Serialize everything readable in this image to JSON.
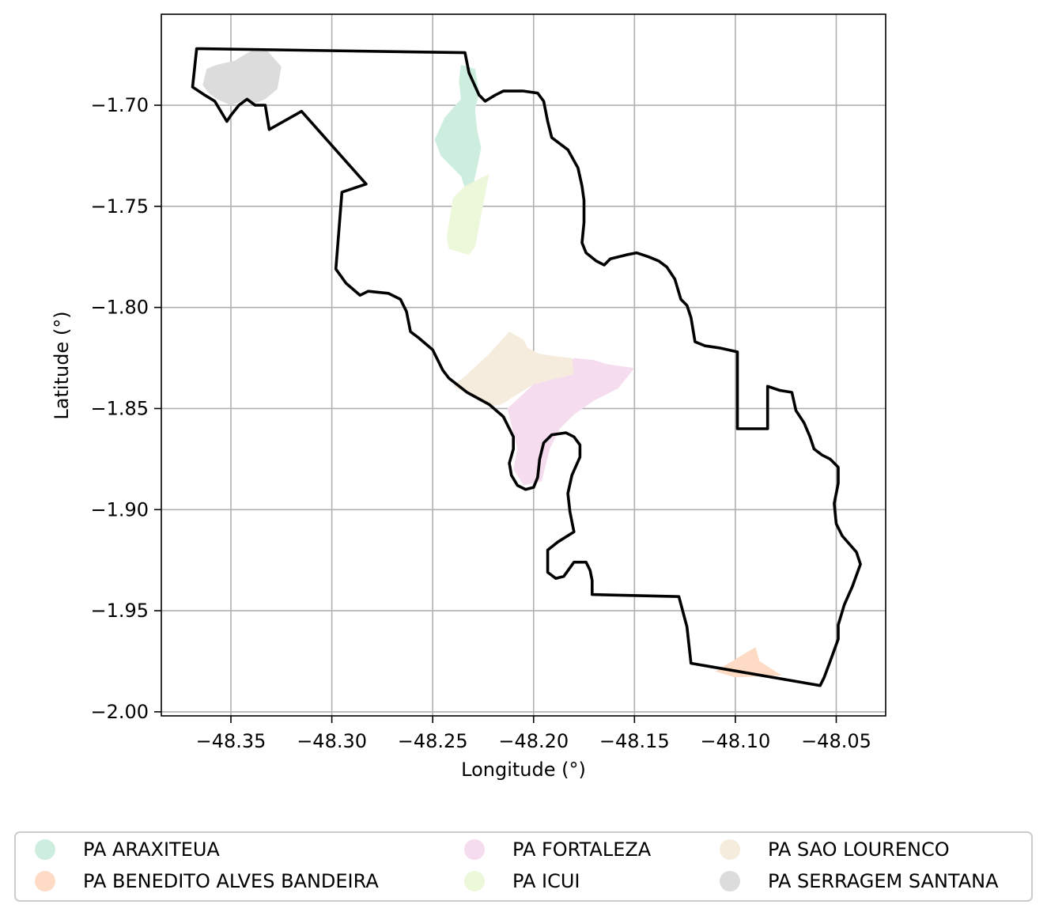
{
  "map": {
    "x_label": "Longitude (°)",
    "y_label": "Latitude (°)",
    "x_ticks": [
      {
        "value": -48.35,
        "label": "−48.35"
      },
      {
        "value": -48.3,
        "label": "−48.30"
      },
      {
        "value": -48.25,
        "label": "−48.25"
      },
      {
        "value": -48.2,
        "label": "−48.20"
      },
      {
        "value": -48.15,
        "label": "−48.15"
      },
      {
        "value": -48.1,
        "label": "−48.10"
      },
      {
        "value": -48.05,
        "label": "−48.05"
      }
    ],
    "y_ticks": [
      {
        "value": -1.7,
        "label": "−1.70"
      },
      {
        "value": -1.75,
        "label": "−1.75"
      },
      {
        "value": -1.8,
        "label": "−1.80"
      },
      {
        "value": -1.85,
        "label": "−1.85"
      },
      {
        "value": -1.9,
        "label": "−1.90"
      },
      {
        "value": -1.95,
        "label": "−1.95"
      },
      {
        "value": -2.0,
        "label": "−2.00"
      }
    ],
    "x_range": [
      -48.3845,
      -48.0255
    ],
    "y_range": [
      -2.002,
      -1.655
    ],
    "grid": true,
    "legend_placement": "below",
    "boundary_color": "#000000"
  },
  "legend": [
    {
      "label": "PA ARAXITEUA",
      "color": "#cdeede"
    },
    {
      "label": "PA BENEDITO ALVES BANDEIRA",
      "color": "#fddbc4"
    },
    {
      "label": "PA FORTALEZA",
      "color": "#f5dcee"
    },
    {
      "label": "PA ICUI",
      "color": "#edf8db"
    },
    {
      "label": "PA SAO LOURENCO",
      "color": "#f5ecdd"
    },
    {
      "label": "PA SERRAGEM SANTANA",
      "color": "#dcdcdc"
    }
  ],
  "chart_data": {
    "type": "map",
    "x_label": "Longitude (°)",
    "y_label": "Latitude (°)",
    "x_range": [
      -48.3845,
      -48.0255
    ],
    "y_range": [
      -2.002,
      -1.655
    ],
    "grid": true,
    "legend_placement": "below",
    "boundary": [
      [
        -48.367,
        -1.672
      ],
      [
        -48.234,
        -1.674
      ],
      [
        -48.232,
        -1.684
      ],
      [
        -48.227,
        -1.695
      ],
      [
        -48.224,
        -1.698
      ],
      [
        -48.219,
        -1.695
      ],
      [
        -48.215,
        -1.693
      ],
      [
        -48.205,
        -1.693
      ],
      [
        -48.198,
        -1.694
      ],
      [
        -48.195,
        -1.698
      ],
      [
        -48.193,
        -1.708
      ],
      [
        -48.191,
        -1.716
      ],
      [
        -48.183,
        -1.722
      ],
      [
        -48.178,
        -1.731
      ],
      [
        -48.176,
        -1.74
      ],
      [
        -48.175,
        -1.747
      ],
      [
        -48.175,
        -1.758
      ],
      [
        -48.176,
        -1.768
      ],
      [
        -48.174,
        -1.773
      ],
      [
        -48.169,
        -1.777
      ],
      [
        -48.165,
        -1.779
      ],
      [
        -48.162,
        -1.776
      ],
      [
        -48.154,
        -1.774
      ],
      [
        -48.149,
        -1.773
      ],
      [
        -48.143,
        -1.775
      ],
      [
        -48.138,
        -1.777
      ],
      [
        -48.134,
        -1.78
      ],
      [
        -48.13,
        -1.786
      ],
      [
        -48.127,
        -1.796
      ],
      [
        -48.124,
        -1.799
      ],
      [
        -48.122,
        -1.805
      ],
      [
        -48.12,
        -1.817
      ],
      [
        -48.115,
        -1.819
      ],
      [
        -48.108,
        -1.82
      ],
      [
        -48.099,
        -1.822
      ],
      [
        -48.099,
        -1.86
      ],
      [
        -48.084,
        -1.86
      ],
      [
        -48.084,
        -1.839
      ],
      [
        -48.078,
        -1.841
      ],
      [
        -48.072,
        -1.842
      ],
      [
        -48.07,
        -1.851
      ],
      [
        -48.066,
        -1.857
      ],
      [
        -48.063,
        -1.864
      ],
      [
        -48.061,
        -1.87
      ],
      [
        -48.057,
        -1.873
      ],
      [
        -48.053,
        -1.875
      ],
      [
        -48.049,
        -1.879
      ],
      [
        -48.049,
        -1.887
      ],
      [
        -48.051,
        -1.897
      ],
      [
        -48.05,
        -1.907
      ],
      [
        -48.047,
        -1.913
      ],
      [
        -48.04,
        -1.921
      ],
      [
        -48.038,
        -1.927
      ],
      [
        -48.042,
        -1.938
      ],
      [
        -48.046,
        -1.947
      ],
      [
        -48.049,
        -1.957
      ],
      [
        -48.049,
        -1.964
      ],
      [
        -48.053,
        -1.975
      ],
      [
        -48.056,
        -1.983
      ],
      [
        -48.058,
        -1.987
      ],
      [
        -48.122,
        -1.976
      ],
      [
        -48.124,
        -1.958
      ],
      [
        -48.128,
        -1.943
      ],
      [
        -48.171,
        -1.942
      ],
      [
        -48.171,
        -1.935
      ],
      [
        -48.172,
        -1.93
      ],
      [
        -48.174,
        -1.926
      ],
      [
        -48.18,
        -1.926
      ],
      [
        -48.185,
        -1.933
      ],
      [
        -48.189,
        -1.934
      ],
      [
        -48.193,
        -1.931
      ],
      [
        -48.193,
        -1.92
      ],
      [
        -48.188,
        -1.916
      ],
      [
        -48.18,
        -1.911
      ],
      [
        -48.182,
        -1.901
      ],
      [
        -48.183,
        -1.892
      ],
      [
        -48.181,
        -1.883
      ],
      [
        -48.177,
        -1.874
      ],
      [
        -48.177,
        -1.868
      ],
      [
        -48.18,
        -1.864
      ],
      [
        -48.184,
        -1.862
      ],
      [
        -48.191,
        -1.863
      ],
      [
        -48.195,
        -1.867
      ],
      [
        -48.197,
        -1.875
      ],
      [
        -48.198,
        -1.884
      ],
      [
        -48.2,
        -1.889
      ],
      [
        -48.204,
        -1.89
      ],
      [
        -48.208,
        -1.888
      ],
      [
        -48.211,
        -1.883
      ],
      [
        -48.212,
        -1.877
      ],
      [
        -48.21,
        -1.87
      ],
      [
        -48.21,
        -1.864
      ],
      [
        -48.215,
        -1.854
      ],
      [
        -48.222,
        -1.848
      ],
      [
        -48.233,
        -1.842
      ],
      [
        -48.242,
        -1.835
      ],
      [
        -48.245,
        -1.831
      ],
      [
        -48.25,
        -1.821
      ],
      [
        -48.257,
        -1.815
      ],
      [
        -48.261,
        -1.812
      ],
      [
        -48.263,
        -1.802
      ],
      [
        -48.266,
        -1.796
      ],
      [
        -48.272,
        -1.793
      ],
      [
        -48.282,
        -1.792
      ],
      [
        -48.286,
        -1.794
      ],
      [
        -48.293,
        -1.788
      ],
      [
        -48.298,
        -1.781
      ],
      [
        -48.295,
        -1.743
      ],
      [
        -48.283,
        -1.739
      ],
      [
        -48.315,
        -1.703
      ],
      [
        -48.331,
        -1.712
      ],
      [
        -48.333,
        -1.7
      ],
      [
        -48.338,
        -1.7
      ],
      [
        -48.342,
        -1.697
      ],
      [
        -48.346,
        -1.7
      ],
      [
        -48.35,
        -1.705
      ],
      [
        -48.352,
        -1.708
      ],
      [
        -48.358,
        -1.698
      ],
      [
        -48.363,
        -1.695
      ],
      [
        -48.369,
        -1.691
      ],
      [
        -48.367,
        -1.672
      ]
    ],
    "regions": [
      {
        "name": "PA ARAXITEUA",
        "polygon": [
          [
            -48.236,
            -1.68
          ],
          [
            -48.229,
            -1.682
          ],
          [
            -48.227,
            -1.694
          ],
          [
            -48.229,
            -1.702
          ],
          [
            -48.228,
            -1.712
          ],
          [
            -48.226,
            -1.721
          ],
          [
            -48.228,
            -1.731
          ],
          [
            -48.23,
            -1.74
          ],
          [
            -48.234,
            -1.741
          ],
          [
            -48.236,
            -1.735
          ],
          [
            -48.241,
            -1.73
          ],
          [
            -48.246,
            -1.725
          ],
          [
            -48.249,
            -1.717
          ],
          [
            -48.244,
            -1.706
          ],
          [
            -48.236,
            -1.697
          ],
          [
            -48.237,
            -1.688
          ]
        ]
      },
      {
        "name": "PA BENEDITO ALVES BANDEIRA",
        "polygon": [
          [
            -48.11,
            -1.98
          ],
          [
            -48.09,
            -1.968
          ],
          [
            -48.088,
            -1.975
          ],
          [
            -48.077,
            -1.982
          ],
          [
            -48.1,
            -1.983
          ]
        ]
      },
      {
        "name": "PA FORTALEZA",
        "polygon": [
          [
            -48.18,
            -1.825
          ],
          [
            -48.17,
            -1.826
          ],
          [
            -48.164,
            -1.828
          ],
          [
            -48.15,
            -1.83
          ],
          [
            -48.158,
            -1.84
          ],
          [
            -48.17,
            -1.846
          ],
          [
            -48.18,
            -1.853
          ],
          [
            -48.187,
            -1.86
          ],
          [
            -48.192,
            -1.87
          ],
          [
            -48.196,
            -1.886
          ],
          [
            -48.205,
            -1.888
          ],
          [
            -48.21,
            -1.88
          ],
          [
            -48.208,
            -1.87
          ],
          [
            -48.213,
            -1.85
          ],
          [
            -48.2,
            -1.838
          ],
          [
            -48.188,
            -1.832
          ]
        ]
      },
      {
        "name": "PA ICUI",
        "polygon": [
          [
            -48.222,
            -1.734
          ],
          [
            -48.234,
            -1.74
          ],
          [
            -48.24,
            -1.746
          ],
          [
            -48.243,
            -1.765
          ],
          [
            -48.242,
            -1.771
          ],
          [
            -48.232,
            -1.774
          ],
          [
            -48.229,
            -1.77
          ]
        ]
      },
      {
        "name": "PA SAO LOURENCO",
        "polygon": [
          [
            -48.212,
            -1.812
          ],
          [
            -48.205,
            -1.816
          ],
          [
            -48.203,
            -1.82
          ],
          [
            -48.197,
            -1.823
          ],
          [
            -48.19,
            -1.824
          ],
          [
            -48.181,
            -1.825
          ],
          [
            -48.18,
            -1.833
          ],
          [
            -48.2,
            -1.838
          ],
          [
            -48.216,
            -1.848
          ],
          [
            -48.222,
            -1.849
          ],
          [
            -48.24,
            -1.839
          ],
          [
            -48.234,
            -1.834
          ],
          [
            -48.222,
            -1.823
          ]
        ]
      },
      {
        "name": "PA SERRAGEM SANTANA",
        "polygon": [
          [
            -48.348,
            -1.678
          ],
          [
            -48.345,
            -1.676
          ],
          [
            -48.338,
            -1.672
          ],
          [
            -48.332,
            -1.673
          ],
          [
            -48.325,
            -1.681
          ],
          [
            -48.327,
            -1.692
          ],
          [
            -48.333,
            -1.697
          ],
          [
            -48.338,
            -1.699
          ],
          [
            -48.342,
            -1.697
          ],
          [
            -48.35,
            -1.7
          ],
          [
            -48.357,
            -1.697
          ],
          [
            -48.361,
            -1.694
          ],
          [
            -48.364,
            -1.69
          ],
          [
            -48.362,
            -1.682
          ],
          [
            -48.357,
            -1.68
          ]
        ]
      }
    ]
  }
}
